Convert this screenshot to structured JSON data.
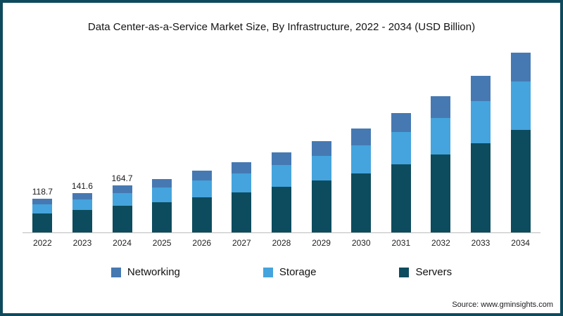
{
  "title": "Data Center-as-a-Service Market Size, By Infrastructure, 2022 - 2034 (USD Billion)",
  "source": "Source: www.gminsights.com",
  "colors": {
    "frame_border": "#0e4a5c",
    "servers": "#0d4c5e",
    "storage": "#45a4dd",
    "networking": "#4679b2",
    "axis_line": "#bdbdbd"
  },
  "legend": [
    {
      "label": "Networking",
      "color": "#4679b2"
    },
    {
      "label": "Storage",
      "color": "#45a4dd"
    },
    {
      "label": "Servers",
      "color": "#0d4c5e"
    }
  ],
  "chart_data": {
    "type": "bar",
    "stacked": true,
    "title": "Data Center-as-a-Service Market Size, By Infrastructure, 2022 - 2034 (USD Billion)",
    "xlabel": "",
    "ylabel": "",
    "ylim": [
      0,
      660
    ],
    "grid": false,
    "legend_position": "bottom",
    "categories": [
      "2022",
      "2023",
      "2024",
      "2025",
      "2026",
      "2027",
      "2028",
      "2029",
      "2030",
      "2031",
      "2032",
      "2033",
      "2034"
    ],
    "series": [
      {
        "name": "Servers",
        "color": "#0d4c5e",
        "values": [
          67.7,
          80.7,
          93.9,
          108.3,
          125.4,
          141.4,
          162.5,
          185.3,
          210.9,
          242.3,
          276.5,
          316.4,
          364.8
        ]
      },
      {
        "name": "Storage",
        "color": "#45a4dd",
        "values": [
          32.0,
          38.2,
          44.5,
          51.3,
          59.4,
          67.0,
          77.0,
          87.8,
          99.9,
          114.8,
          131.0,
          149.9,
          172.8
        ]
      },
      {
        "name": "Networking",
        "color": "#4679b2",
        "values": [
          19.0,
          22.7,
          26.3,
          30.4,
          35.2,
          39.7,
          45.6,
          52.0,
          59.2,
          68.0,
          77.6,
          88.8,
          102.4
        ]
      }
    ],
    "totals": [
      118.7,
      141.6,
      164.7,
      190.0,
      220.0,
      248.1,
      285.1,
      325.1,
      370.0,
      425.1,
      485.1,
      555.1,
      640.0
    ],
    "bar_labels": [
      "118.7",
      "141.6",
      "164.7",
      "",
      "",
      "",
      "",
      "",
      "",
      "",
      "",
      "",
      ""
    ]
  }
}
